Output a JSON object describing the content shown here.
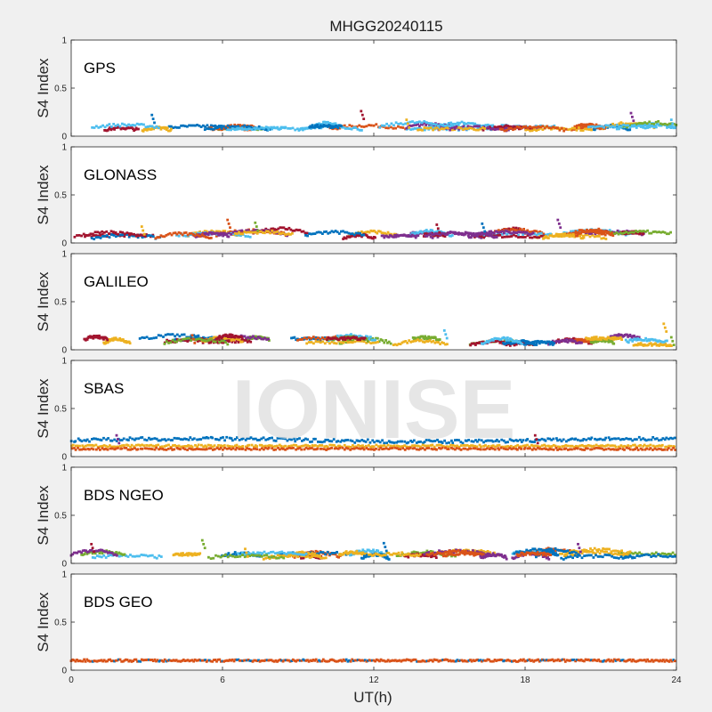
{
  "figure": {
    "title": "MHGG20240115",
    "watermark": "IONISE",
    "xlabel": "UT(h)",
    "ylabel": "S4 Index"
  },
  "colors": {
    "figure_bg": "#f0f0f0",
    "axes_bg": "#ffffff",
    "axes_edge": "#262626",
    "watermark": "#dcdcdc",
    "palette": [
      "#0072bd",
      "#d95319",
      "#edb120",
      "#7e2f8e",
      "#77ac30",
      "#4dbeee",
      "#a2142f"
    ]
  },
  "chart_data": [
    {
      "type": "scatter",
      "panel_label": "GPS",
      "xlim": [
        0,
        24
      ],
      "ylim": [
        0,
        1
      ],
      "xticks": [
        0,
        6,
        12,
        18,
        24
      ],
      "yticks": [
        0,
        0.5,
        1
      ],
      "ytick_labels": [
        "0",
        "0.5",
        "1"
      ],
      "show_xtick_labels": false,
      "baseline_s4": [
        0.06,
        0.1
      ],
      "spikes": [
        [
          3.2,
          0.22
        ],
        [
          22.2,
          0.24
        ],
        [
          11.5,
          0.26
        ],
        [
          13.3,
          0.17
        ],
        [
          23.8,
          0.17
        ]
      ]
    },
    {
      "type": "scatter",
      "panel_label": "GLONASS",
      "xlim": [
        0,
        24
      ],
      "ylim": [
        0,
        1
      ],
      "xticks": [
        0,
        6,
        12,
        18,
        24
      ],
      "yticks": [
        0,
        0.5,
        1
      ],
      "ytick_labels": [
        "0",
        "0.5",
        "1"
      ],
      "show_xtick_labels": false,
      "baseline_s4": [
        0.05,
        0.11
      ],
      "spikes": [
        [
          6.2,
          0.24
        ],
        [
          7.3,
          0.21
        ],
        [
          16.3,
          0.2
        ],
        [
          19.3,
          0.24
        ],
        [
          14.5,
          0.19
        ],
        [
          2.8,
          0.17
        ]
      ]
    },
    {
      "type": "scatter",
      "panel_label": "GALILEO",
      "xlim": [
        0,
        24
      ],
      "ylim": [
        0,
        1
      ],
      "xticks": [
        0,
        6,
        12,
        18,
        24
      ],
      "yticks": [
        0,
        0.5,
        1
      ],
      "ytick_labels": [
        "0",
        "0.5",
        "1"
      ],
      "show_xtick_labels": false,
      "baseline_s4": [
        0.05,
        0.12
      ],
      "spikes": [
        [
          23.5,
          0.27
        ],
        [
          14.8,
          0.2
        ],
        [
          4.8,
          0.15
        ],
        [
          23.8,
          0.13
        ]
      ]
    },
    {
      "type": "scatter",
      "panel_label": "SBAS",
      "xlim": [
        0,
        24
      ],
      "ylim": [
        0,
        1
      ],
      "xticks": [
        0,
        6,
        12,
        18,
        24
      ],
      "yticks": [
        0,
        0.5,
        1
      ],
      "ytick_labels": [
        "0",
        "0.5",
        "1"
      ],
      "show_xtick_labels": false,
      "sbas_levels": [
        0.17,
        0.11,
        0.08
      ],
      "spikes": [
        [
          1.8,
          0.22
        ],
        [
          18.4,
          0.22
        ]
      ]
    },
    {
      "type": "scatter",
      "panel_label": "BDS NGEO",
      "xlim": [
        0,
        24
      ],
      "ylim": [
        0,
        1
      ],
      "xticks": [
        0,
        6,
        12,
        18,
        24
      ],
      "yticks": [
        0,
        0.5,
        1
      ],
      "ytick_labels": [
        "0",
        "0.5",
        "1"
      ],
      "show_xtick_labels": false,
      "baseline_s4": [
        0.05,
        0.11
      ],
      "spikes": [
        [
          5.2,
          0.24
        ],
        [
          12.4,
          0.21
        ],
        [
          20.1,
          0.2
        ],
        [
          0.8,
          0.2
        ],
        [
          6.9,
          0.15
        ]
      ]
    },
    {
      "type": "scatter",
      "panel_label": "BDS GEO",
      "xlim": [
        0,
        24
      ],
      "ylim": [
        0,
        1
      ],
      "xticks": [
        0,
        6,
        12,
        18,
        24
      ],
      "yticks": [
        0,
        0.5,
        1
      ],
      "ytick_labels": [
        "0",
        "0.5",
        "1"
      ],
      "xtick_labels": [
        "0",
        "6",
        "12",
        "18",
        "24"
      ],
      "show_xtick_labels": true,
      "geo_level": 0.1,
      "spikes": []
    }
  ]
}
